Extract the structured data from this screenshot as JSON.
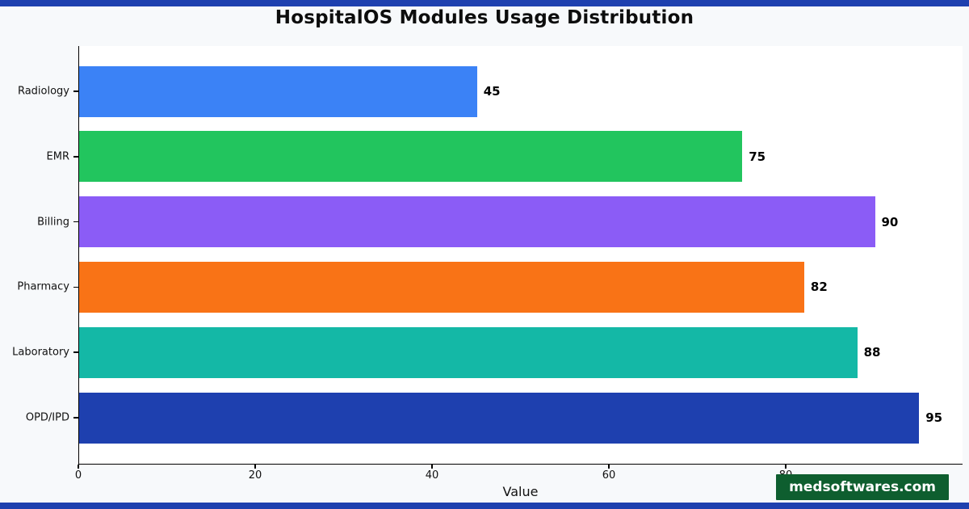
{
  "page": {
    "background": "#f7f9fb",
    "accent_strip_color": "#1e40af"
  },
  "chart_data": {
    "type": "bar",
    "orientation": "horizontal",
    "title": "HospitalOS Modules Usage Distribution",
    "xlabel": "Value",
    "ylabel": "",
    "categories": [
      "Radiology",
      "EMR",
      "Billing",
      "Pharmacy",
      "Laboratory",
      "OPD/IPD"
    ],
    "values": [
      45,
      75,
      90,
      82,
      88,
      95
    ],
    "colors": [
      "#3b82f6",
      "#22c55e",
      "#8b5cf6",
      "#f97316",
      "#14b8a6",
      "#1e40af"
    ],
    "xlim": [
      0,
      100
    ],
    "xticks": [
      0,
      20,
      40,
      60,
      80
    ],
    "grid": false,
    "legend": false,
    "value_labels": true,
    "plot_background": "#ffffff"
  },
  "watermark": {
    "text": "medsoftwares.com",
    "background": "#0e5e2f",
    "text_color": "#ffffff"
  }
}
